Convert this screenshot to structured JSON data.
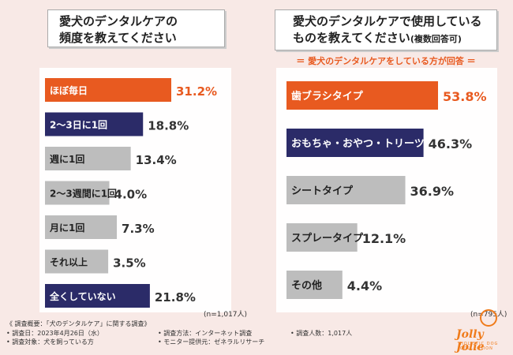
{
  "colors": {
    "top": "#e85a20",
    "second": "#2b2b68",
    "rest": "#bdbdbd",
    "accent": "#e85a20"
  },
  "chart_data": [
    {
      "type": "bar",
      "title": "愛犬のデンタルケアの頻度を教えてください",
      "categories": [
        "ほぼ毎日",
        "2〜3日に1回",
        "週に1回",
        "2〜3週間に1回",
        "月に1回",
        "それ以上",
        "全くしていない"
      ],
      "values": [
        31.2,
        18.8,
        13.4,
        4.0,
        7.3,
        3.5,
        21.8
      ],
      "value_labels": [
        "31.2%",
        "18.8%",
        "13.4%",
        "4.0%",
        "7.3%",
        "3.5%",
        "21.8%"
      ],
      "highlight": [
        "top",
        "second",
        "rest",
        "rest",
        "rest",
        "rest",
        "second"
      ],
      "xlim": [
        0,
        31.2
      ],
      "n_label": "(n=1,017人)"
    },
    {
      "type": "bar",
      "title_line1": "愛犬のデンタルケアで使用している",
      "title_line2": "ものを教えてください",
      "title_note": "(複数回答可)",
      "subtitle": "＝ 愛犬のデンタルケアをしている方が回答 ＝",
      "categories": [
        "歯ブラシタイプ",
        "おもちゃ・おやつ・トリーツ",
        "シートタイプ",
        "スプレータイプ",
        "その他"
      ],
      "values": [
        53.8,
        46.3,
        36.9,
        12.1,
        4.4
      ],
      "value_labels": [
        "53.8%",
        "46.3%",
        "36.9%",
        "12.1%",
        "4.4%"
      ],
      "highlight": [
        "top",
        "second",
        "rest",
        "rest",
        "rest"
      ],
      "xlim": [
        0,
        53.8
      ],
      "n_label": "(n=795人)"
    }
  ],
  "titles": {
    "left_line1": "愛犬のデンタルケアの",
    "left_line2": "頻度を教えてください"
  },
  "footer": {
    "overview": "《 調査概要：「犬のデンタルケア」に関する調査》",
    "date": "• 調査日：2023年4月26日（水）",
    "target": "• 調査対象：犬を飼っている方",
    "method": "• 調査方法：インターネット調査",
    "provider": "• モニター提供元：ゼネラルリサーチ",
    "count": "• 調査人数：1,017人"
  },
  "logo": {
    "name": "Jolly Jolie",
    "tagline": "HOLISTIC DOG COLLECTION"
  }
}
